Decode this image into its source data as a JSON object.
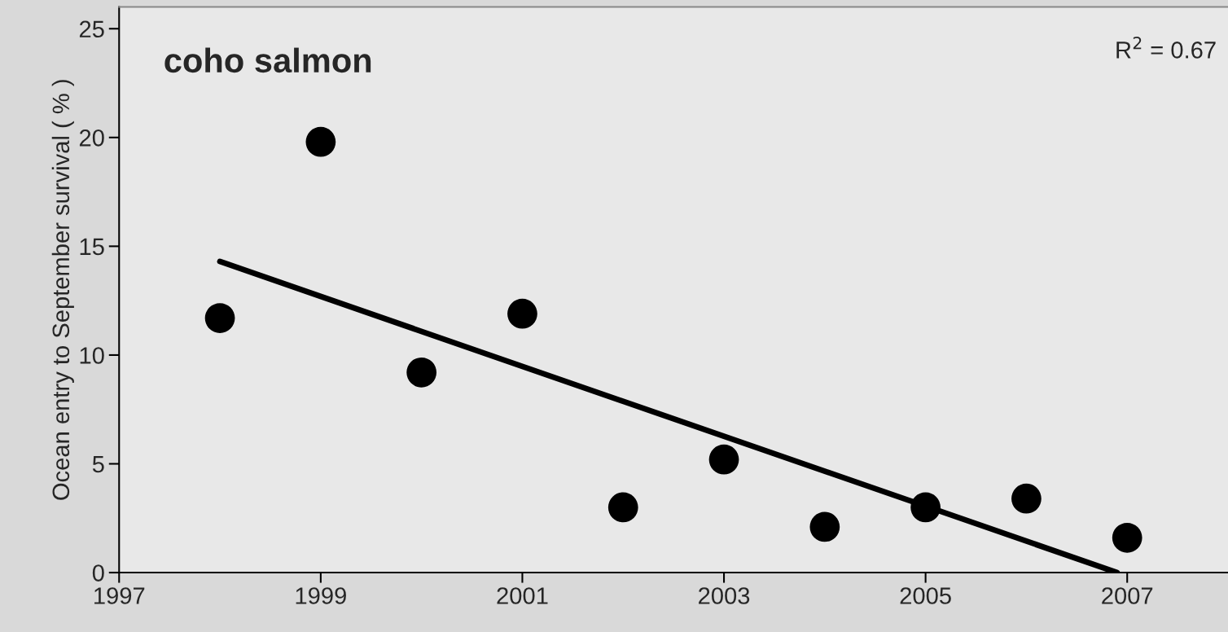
{
  "chart_data": {
    "type": "scatter",
    "ylabel": "Ocean entry to September survival ( % )",
    "annotations": [
      "coho salmon",
      "R$^{2}$ = 0.67"
    ],
    "series": [
      {
        "color": "#000000",
        "marker": "circle",
        "x": [
          1998,
          1999,
          2000,
          2001,
          2002,
          2003,
          2004,
          2005,
          2006,
          2007
        ],
        "values": [
          11.7,
          19.8,
          9.2,
          11.9,
          3.0,
          5.2,
          2.1,
          3.0,
          3.4,
          1.6
        ]
      },
      {
        "type": "line",
        "marker": "none",
        "color": "#000000",
        "x": [
          1998,
          2006.9
        ],
        "values": [
          14.3,
          0
        ]
      }
    ],
    "xlim": [
      1997,
      2008
    ],
    "xticks": [
      1997,
      1999,
      2001,
      2003,
      2005,
      2007
    ],
    "ylim": [
      0,
      26
    ],
    "yticks": [
      0,
      5,
      10,
      15,
      20,
      25
    ],
    "grid": false,
    "legend": false
  }
}
